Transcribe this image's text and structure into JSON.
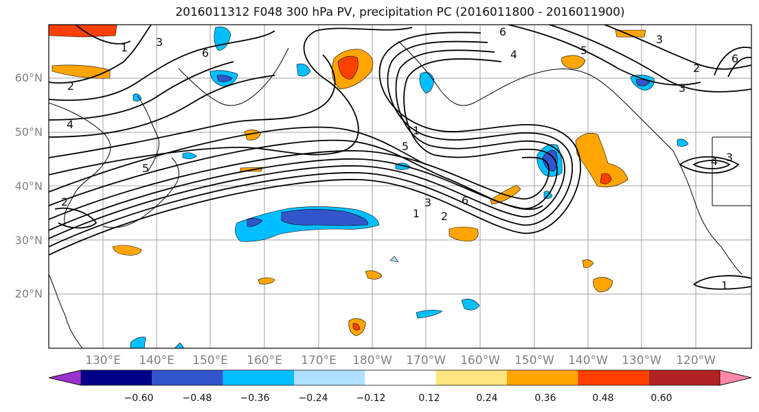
{
  "title": "2016011312 F048 300 hPa PV, precipitation PC (2016011800 - 2016011900)",
  "latitude_labels": [
    "60°N",
    "50°N",
    "40°N",
    "30°N",
    "20°N"
  ],
  "longitude_labels": [
    "130°E",
    "140°E",
    "150°E",
    "160°E",
    "170°E",
    "180°W",
    "170°W",
    "160°W",
    "150°W",
    "140°W",
    "130°W",
    "120°W"
  ],
  "contour_labels": [
    "1",
    "2",
    "3",
    "4",
    "5",
    "6"
  ],
  "colorbar": {
    "tick_labels": [
      "−0.60",
      "−0.48",
      "−0.36",
      "−0.24",
      "−0.12",
      "0.12",
      "0.24",
      "0.36",
      "0.48",
      "0.60"
    ],
    "colors": [
      "#9933cc",
      "#000088",
      "#3355cc",
      "#00bfff",
      "#b0e0ff",
      "#ffffff",
      "#ffe680",
      "#ffa500",
      "#ff4000",
      "#b22222",
      "#ff88aa"
    ]
  },
  "colors": {
    "contour": "#000000",
    "grid": "#a0a0a0",
    "positive_light": "#ffe680",
    "positive_mid": "#ffa500",
    "positive_strong": "#ff4000",
    "negative_light": "#b0e0ff",
    "negative_mid": "#00bfff",
    "negative_strong": "#3355cc"
  }
}
